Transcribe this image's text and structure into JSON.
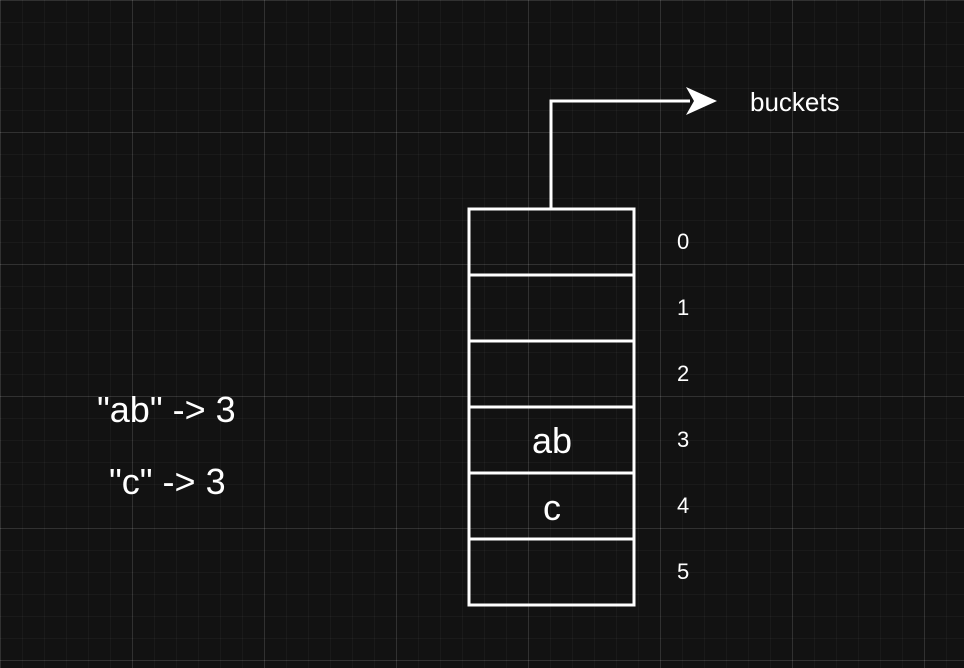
{
  "diagram": {
    "pointer_label": "buckets",
    "buckets": [
      {
        "index": "0",
        "value": ""
      },
      {
        "index": "1",
        "value": ""
      },
      {
        "index": "2",
        "value": ""
      },
      {
        "index": "3",
        "value": "ab"
      },
      {
        "index": "4",
        "value": "c"
      },
      {
        "index": "5",
        "value": ""
      }
    ],
    "mappings": [
      "\"ab\" -> 3",
      "\"c\" -> 3"
    ],
    "colors": {
      "background": "#121212",
      "stroke": "#ffffff",
      "text": "#ffffff"
    }
  }
}
